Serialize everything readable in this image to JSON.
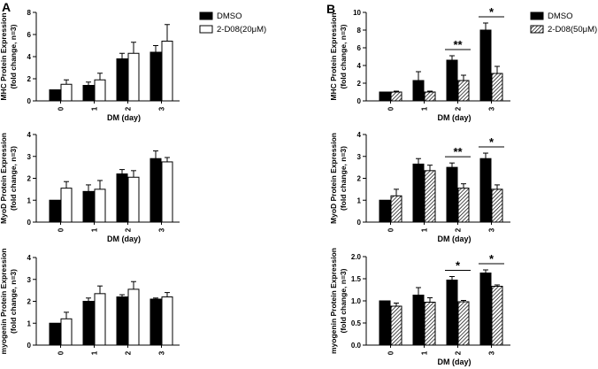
{
  "figure": {
    "panels": [
      {
        "letter": "A",
        "legend": [
          {
            "label": "DMSO",
            "style": "solid"
          },
          {
            "label": "2-D08(20μM)",
            "style": "open"
          }
        ]
      },
      {
        "letter": "B",
        "legend": [
          {
            "label": "DMSO",
            "style": "solid"
          },
          {
            "label": "2-D08(50μM)",
            "style": "hatched"
          }
        ]
      }
    ]
  },
  "chart_data": [
    {
      "id": "A1",
      "type": "bar",
      "xlabel": "DM (day)",
      "ylabel": [
        "MHC Protein Expression",
        "(fold change, n=3)"
      ],
      "categories": [
        "0",
        "1",
        "2",
        "3"
      ],
      "ylim": [
        0,
        8
      ],
      "yticks": [
        "0",
        "2",
        "4",
        "6",
        "8"
      ],
      "series": [
        {
          "name": "DMSO",
          "style": "solid",
          "values": [
            1.0,
            1.4,
            3.8,
            4.4
          ],
          "errors": [
            0.0,
            0.3,
            0.5,
            0.6
          ]
        },
        {
          "name": "2-D08(20μM)",
          "style": "open",
          "values": [
            1.5,
            1.9,
            4.3,
            5.4
          ],
          "errors": [
            0.4,
            0.6,
            1.0,
            1.5
          ]
        }
      ],
      "significance": []
    },
    {
      "id": "A2",
      "type": "bar",
      "xlabel": "DM (day)",
      "ylabel": [
        "MyoD Protein Expression",
        "(fold change, n=3)"
      ],
      "categories": [
        "0",
        "1",
        "2",
        "3"
      ],
      "ylim": [
        0,
        4
      ],
      "yticks": [
        "0",
        "1",
        "2",
        "3",
        "4"
      ],
      "series": [
        {
          "name": "DMSO",
          "style": "solid",
          "values": [
            1.0,
            1.4,
            2.2,
            2.9
          ],
          "errors": [
            0.0,
            0.3,
            0.2,
            0.35
          ]
        },
        {
          "name": "2-D08(20μM)",
          "style": "open",
          "values": [
            1.55,
            1.5,
            2.05,
            2.75
          ],
          "errors": [
            0.3,
            0.4,
            0.3,
            0.2
          ]
        }
      ],
      "significance": []
    },
    {
      "id": "A3",
      "type": "bar",
      "xlabel": "",
      "ylabel": [
        "myogenin Protein Expression",
        "(fold change, n=3)"
      ],
      "categories": [
        "0",
        "1",
        "2",
        "3"
      ],
      "ylim": [
        0,
        4
      ],
      "yticks": [
        "0",
        "1",
        "2",
        "3",
        "4"
      ],
      "series": [
        {
          "name": "DMSO",
          "style": "solid",
          "values": [
            1.0,
            2.0,
            2.2,
            2.1
          ],
          "errors": [
            0.0,
            0.15,
            0.1,
            0.05
          ]
        },
        {
          "name": "2-D08(20μM)",
          "style": "open",
          "values": [
            1.2,
            2.35,
            2.55,
            2.2
          ],
          "errors": [
            0.3,
            0.35,
            0.35,
            0.2
          ]
        }
      ],
      "significance": []
    },
    {
      "id": "B1",
      "type": "bar",
      "xlabel": "DM (day)",
      "ylabel": [
        "MHC Protein Expression",
        "(fold change, n=3)"
      ],
      "categories": [
        "0",
        "1",
        "2",
        "3"
      ],
      "ylim": [
        0,
        10
      ],
      "yticks": [
        "0",
        "2",
        "4",
        "6",
        "8",
        "10"
      ],
      "series": [
        {
          "name": "DMSO",
          "style": "solid",
          "values": [
            1.0,
            2.3,
            4.6,
            8.0
          ],
          "errors": [
            0.0,
            1.0,
            0.5,
            0.8
          ]
        },
        {
          "name": "2-D08(50μM)",
          "style": "hatched",
          "values": [
            1.0,
            1.0,
            2.3,
            3.1
          ],
          "errors": [
            0.1,
            0.1,
            0.6,
            0.8
          ]
        }
      ],
      "significance": [
        {
          "category": "2",
          "label": "**"
        },
        {
          "category": "3",
          "label": "*"
        }
      ]
    },
    {
      "id": "B2",
      "type": "bar",
      "xlabel": "DM (day)",
      "ylabel": [
        "MyoD Protein Expression",
        "(fold change, n=3)"
      ],
      "categories": [
        "0",
        "1",
        "2",
        "3"
      ],
      "ylim": [
        0,
        4
      ],
      "yticks": [
        "0",
        "1",
        "2",
        "3",
        "4"
      ],
      "series": [
        {
          "name": "DMSO",
          "style": "solid",
          "values": [
            1.0,
            2.65,
            2.5,
            2.9
          ],
          "errors": [
            0.0,
            0.25,
            0.2,
            0.25
          ]
        },
        {
          "name": "2-D08(50μM)",
          "style": "hatched",
          "values": [
            1.2,
            2.35,
            1.55,
            1.5
          ],
          "errors": [
            0.3,
            0.25,
            0.2,
            0.2
          ]
        }
      ],
      "significance": [
        {
          "category": "2",
          "label": "**"
        },
        {
          "category": "3",
          "label": "*"
        }
      ]
    },
    {
      "id": "B3",
      "type": "bar",
      "xlabel": "DM (day)",
      "ylabel": [
        "myogenin Protein Expression",
        "(fold change, n=3)"
      ],
      "categories": [
        "0",
        "1",
        "2",
        "3"
      ],
      "ylim": [
        0,
        2.0
      ],
      "yticks": [
        "0.0",
        "0.5",
        "1.0",
        "1.5",
        "2.0"
      ],
      "series": [
        {
          "name": "DMSO",
          "style": "solid",
          "values": [
            1.0,
            1.13,
            1.47,
            1.63
          ],
          "errors": [
            0.0,
            0.17,
            0.08,
            0.07
          ]
        },
        {
          "name": "2-D08(50μM)",
          "style": "hatched",
          "values": [
            0.88,
            0.97,
            0.98,
            1.33
          ],
          "errors": [
            0.07,
            0.1,
            0.03,
            0.03
          ]
        }
      ],
      "significance": [
        {
          "category": "2",
          "label": "*"
        },
        {
          "category": "3",
          "label": "*"
        }
      ]
    }
  ]
}
